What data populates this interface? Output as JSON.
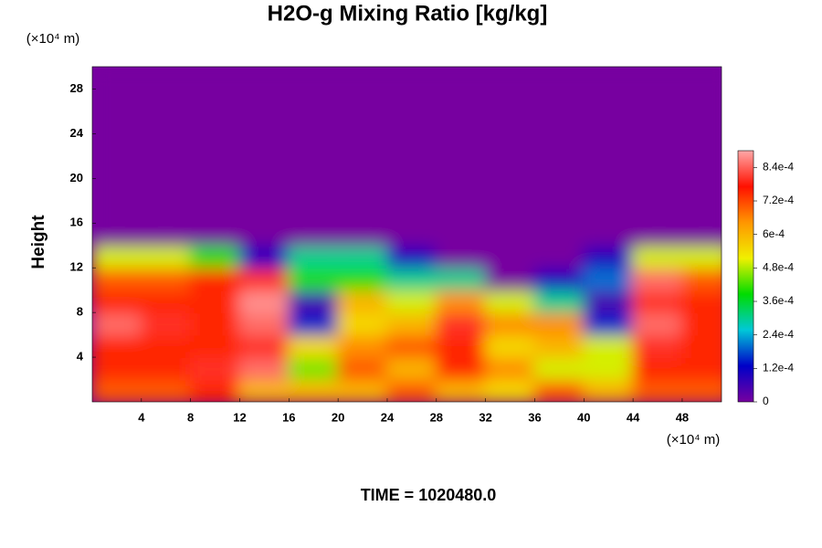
{
  "chart_data": {
    "type": "heatmap",
    "title": "H2O-g Mixing Ratio [kg/kg]",
    "ylabel": "Height",
    "y_unit": "(×10⁴ m)",
    "x_unit": "(×10⁴ m)",
    "footer": "TIME = 1020480.0",
    "xlim": [
      0,
      51.2
    ],
    "ylim": [
      0,
      30
    ],
    "xticks": [
      4,
      8,
      12,
      16,
      20,
      24,
      28,
      32,
      36,
      40,
      44,
      48
    ],
    "yticks": [
      4,
      8,
      12,
      16,
      20,
      24,
      28
    ],
    "x": [
      2,
      6,
      10,
      14,
      18,
      22,
      26,
      30,
      34,
      38,
      42,
      46,
      50
    ],
    "y": [
      1,
      3,
      5,
      7,
      9,
      11,
      13,
      15,
      17,
      19,
      21,
      23,
      25,
      27,
      29
    ],
    "z": [
      [
        0.0007,
        0.0007,
        0.00075,
        0.0006,
        0.0006,
        0.0006,
        0.0007,
        0.0006,
        0.00055,
        0.0007,
        0.0006,
        0.0007,
        0.0007
      ],
      [
        0.00075,
        0.00075,
        0.0008,
        0.00085,
        0.00045,
        0.0007,
        0.0006,
        0.00075,
        0.00065,
        0.0005,
        0.0005,
        0.00075,
        0.00075
      ],
      [
        0.00075,
        0.00075,
        0.00075,
        0.0008,
        0.00055,
        0.00065,
        0.0007,
        0.00075,
        0.00055,
        0.0006,
        0.0005,
        0.0008,
        0.00075
      ],
      [
        0.00085,
        0.0008,
        0.00075,
        0.00085,
        0.00015,
        0.00055,
        0.0006,
        0.0008,
        0.00065,
        0.00065,
        0.00015,
        0.00085,
        0.00075
      ],
      [
        0.00075,
        0.00075,
        0.00075,
        0.00088,
        5e-05,
        0.0006,
        0.0005,
        0.00065,
        0.0005,
        0.0003,
        5e-05,
        0.0008,
        0.00075
      ],
      [
        0.0007,
        0.0007,
        0.00075,
        0.0008,
        0.0004,
        0.0004,
        0.0003,
        0.0003,
        0,
        0.0001,
        0.0002,
        0.00085,
        0.0007
      ],
      [
        0.0005,
        0.0005,
        0.0004,
        0.0001,
        0.0003,
        0.0003,
        0.0001,
        0,
        0,
        0,
        0.0001,
        0.0005,
        0.0005
      ],
      [
        0,
        0,
        0,
        0,
        0,
        0,
        0,
        0,
        0,
        0,
        0,
        0,
        0
      ],
      [
        0,
        0,
        0,
        0,
        0,
        0,
        0,
        0,
        0,
        0,
        0,
        0,
        0
      ],
      [
        0,
        0,
        0,
        0,
        0,
        0,
        0,
        0,
        0,
        0,
        0,
        0,
        0
      ],
      [
        0,
        0,
        0,
        0,
        0,
        0,
        0,
        0,
        0,
        0,
        0,
        0,
        0
      ],
      [
        0,
        0,
        0,
        0,
        0,
        0,
        0,
        0,
        0,
        0,
        0,
        0,
        0
      ],
      [
        0,
        0,
        0,
        0,
        0,
        0,
        0,
        0,
        0,
        0,
        0,
        0,
        0
      ],
      [
        0,
        0,
        0,
        0,
        0,
        0,
        0,
        0,
        0,
        0,
        0,
        0,
        0
      ],
      [
        0,
        0,
        0,
        0,
        0,
        0,
        0,
        0,
        0,
        0,
        0,
        0,
        0
      ]
    ],
    "zlim": [
      0,
      0.0009
    ],
    "zticks": [
      0,
      {
        "value": 0.00012,
        "label": "1.2e-4"
      },
      {
        "value": 0.00024,
        "label": "2.4e-4"
      },
      {
        "value": 0.00036,
        "label": "3.6e-4"
      },
      {
        "value": 0.00048,
        "label": "4.8e-4"
      },
      {
        "value": 0.0006,
        "label": "6e-4"
      },
      {
        "value": 0.00072,
        "label": "7.2e-4"
      },
      {
        "value": 0.00084,
        "label": "8.4e-4"
      }
    ],
    "colormap": [
      "#7700a0",
      "#0000c8",
      "#00c8d8",
      "#00dc00",
      "#f0f000",
      "#ff9600",
      "#ff1000",
      "#ffa8a8"
    ]
  }
}
